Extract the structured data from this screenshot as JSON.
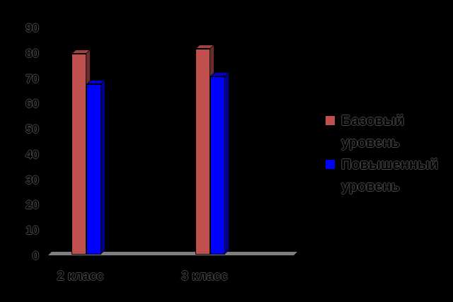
{
  "chart_data": {
    "type": "bar",
    "variant": "3d-clustered-column",
    "title": "",
    "xlabel": "",
    "ylabel": "",
    "categories": [
      "2 класс",
      "3 класс"
    ],
    "series": [
      {
        "name": "Базовый уровень",
        "color": "#C0504D",
        "values": [
          80,
          82
        ]
      },
      {
        "name": "Повышенный уровень",
        "color": "#0000FF",
        "values": [
          68,
          71
        ]
      }
    ],
    "ylim": [
      0,
      90
    ],
    "yticks": [
      0,
      10,
      20,
      30,
      40,
      50,
      60,
      70,
      80,
      90
    ],
    "grid": false,
    "legend_position": "right",
    "colors": {
      "background": "#000000",
      "text": "#000000",
      "floor": "#7F7F7F"
    }
  }
}
